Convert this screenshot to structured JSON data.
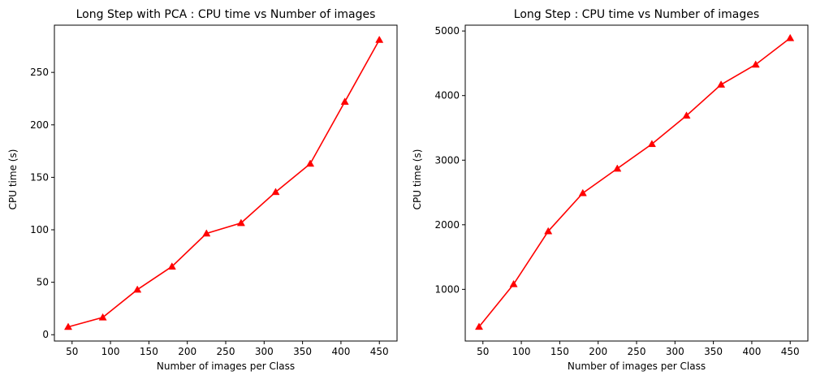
{
  "chart_data": [
    {
      "type": "line",
      "title": "Long Step with PCA : CPU time vs Number of images",
      "xlabel": "Number of images per Class",
      "ylabel": "CPU time (s)",
      "xlim": [
        27,
        473
      ],
      "ylim": [
        -6,
        295
      ],
      "xticks": [
        50,
        100,
        150,
        200,
        250,
        300,
        350,
        400,
        450
      ],
      "yticks": [
        0,
        50,
        100,
        150,
        200,
        250
      ],
      "xtick_labels": [
        "50",
        "100",
        "150",
        "200",
        "250",
        "300",
        "350",
        "400",
        "450"
      ],
      "ytick_labels": [
        "0",
        "50",
        "100",
        "150",
        "200",
        "250"
      ],
      "grid": false,
      "series": [
        {
          "color": "#ff0000",
          "marker": "triangle-up",
          "x": [
            45,
            90,
            135,
            180,
            225,
            270,
            315,
            360,
            405,
            450
          ],
          "y": [
            7.5,
            16.5,
            43,
            65,
            96.5,
            106.5,
            136,
            163,
            222,
            281
          ]
        }
      ]
    },
    {
      "type": "line",
      "title": "Long Step : CPU time vs Number of images",
      "xlabel": "Number of images per Class",
      "ylabel": "CPU time (s)",
      "xlim": [
        27,
        473
      ],
      "ylim": [
        200,
        5090
      ],
      "xticks": [
        50,
        100,
        150,
        200,
        250,
        300,
        350,
        400,
        450
      ],
      "yticks": [
        1000,
        2000,
        3000,
        4000,
        5000
      ],
      "xtick_labels": [
        "50",
        "100",
        "150",
        "200",
        "250",
        "300",
        "350",
        "400",
        "450"
      ],
      "ytick_labels": [
        "1000",
        "2000",
        "3000",
        "4000",
        "5000"
      ],
      "grid": false,
      "series": [
        {
          "color": "#ff0000",
          "marker": "triangle-up",
          "x": [
            45,
            90,
            135,
            180,
            225,
            270,
            315,
            360,
            405,
            450
          ],
          "y": [
            420,
            1080,
            1900,
            2490,
            2870,
            3250,
            3690,
            4170,
            4480,
            4890
          ]
        }
      ]
    }
  ]
}
